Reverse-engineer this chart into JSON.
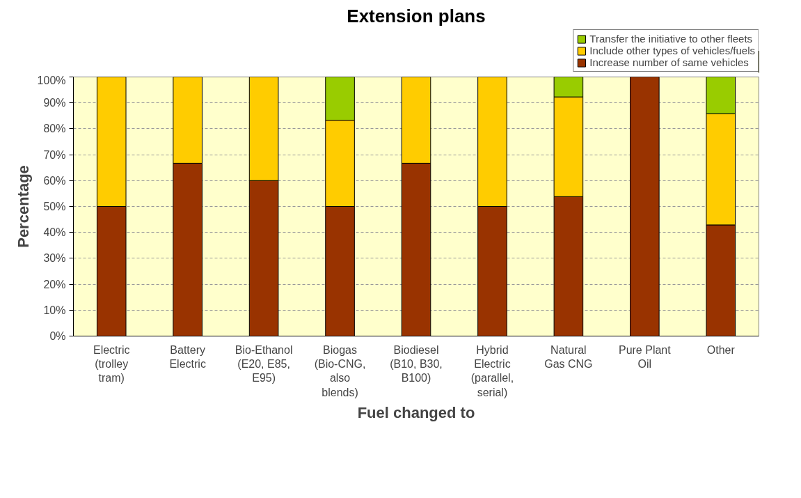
{
  "chart_data": {
    "type": "bar",
    "title": "Extension plans",
    "xlabel": "Fuel changed to",
    "ylabel": "Percentage",
    "stacked": true,
    "categories": [
      "Electric (trolley tram)",
      "Battery Electric",
      "Bio-Ethanol (E20, E85, E95)",
      "Biogas (Bio-CNG, also blends)",
      "Biodiesel (B10, B30, B100)",
      "Hybrid Electric (parallel, serial)",
      "Natural Gas CNG",
      "Pure Plant Oil",
      "Other"
    ],
    "series": [
      {
        "name": "Increase number of same vehicles",
        "color": "#993300",
        "values": [
          50,
          66.7,
          60,
          50,
          66.7,
          50,
          53.8,
          100,
          42.9
        ]
      },
      {
        "name": "Include other types of vehicles/fuels",
        "color": "#ffcc00",
        "values": [
          50,
          33.3,
          40,
          33.3,
          33.3,
          50,
          38.5,
          0,
          42.9
        ]
      },
      {
        "name": "Transfer the initiative to other fleets",
        "color": "#99cc00",
        "values": [
          0,
          0,
          0,
          16.7,
          0,
          0,
          7.7,
          0,
          14.3
        ]
      }
    ],
    "ylim": [
      0,
      100
    ],
    "yticks": [
      {
        "value": 0,
        "label": "0%"
      },
      {
        "value": 10,
        "label": "10%"
      },
      {
        "value": 20,
        "label": "20%"
      },
      {
        "value": 30,
        "label": "30%"
      },
      {
        "value": 40,
        "label": "40%"
      },
      {
        "value": 50,
        "label": "50%"
      },
      {
        "value": 60,
        "label": "60%"
      },
      {
        "value": 70,
        "label": "70%"
      },
      {
        "value": 80,
        "label": "80%"
      },
      {
        "value": 90,
        "label": "90%"
      },
      {
        "value": 100,
        "label": "100%"
      }
    ],
    "grid": "y",
    "legend": "top right"
  }
}
